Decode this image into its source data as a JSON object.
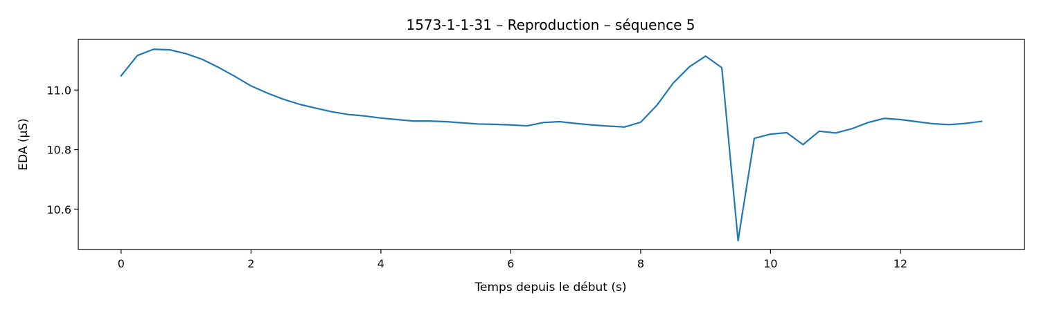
{
  "chart_data": {
    "type": "line",
    "title": "1573-1-1-31 – Reproduction – séquence 5",
    "xlabel": "Temps depuis le début (s)",
    "ylabel": "EDA (µS)",
    "xlim": [
      -0.66,
      13.91
    ],
    "ylim": [
      10.465,
      11.17
    ],
    "x_ticks": [
      0,
      2,
      4,
      6,
      8,
      10,
      12
    ],
    "y_ticks": [
      10.6,
      10.8,
      11.0
    ],
    "x_tick_labels": [
      "0",
      "2",
      "4",
      "6",
      "8",
      "10",
      "12"
    ],
    "y_tick_labels": [
      "10.6",
      "10.8",
      "11.0"
    ],
    "grid": false,
    "line_color": "#1f77b4",
    "series": [
      {
        "x": [
          0,
          0.25,
          0.5,
          0.75,
          1.0,
          1.25,
          1.5,
          1.75,
          2.0,
          2.25,
          2.5,
          2.75,
          3.0,
          3.25,
          3.5,
          3.75,
          4.0,
          4.25,
          4.5,
          4.75,
          5.0,
          5.25,
          5.5,
          5.75,
          6.0,
          6.25,
          6.5,
          6.75,
          7.0,
          7.25,
          7.5,
          7.75,
          8.0,
          8.25,
          8.5,
          8.75,
          9.0,
          9.25,
          9.5,
          9.75,
          10.0,
          10.25,
          10.5,
          10.75,
          11.0,
          11.25,
          11.5,
          11.75,
          12.0,
          12.25,
          12.5,
          12.75,
          13.0,
          13.25
        ],
        "y": [
          11.048,
          11.116,
          11.137,
          11.135,
          11.122,
          11.103,
          11.076,
          11.046,
          11.014,
          10.99,
          10.969,
          10.952,
          10.939,
          10.927,
          10.918,
          10.913,
          10.906,
          10.901,
          10.896,
          10.896,
          10.894,
          10.89,
          10.886,
          10.885,
          10.883,
          10.88,
          10.891,
          10.894,
          10.888,
          10.883,
          10.879,
          10.876,
          10.892,
          10.949,
          11.023,
          11.078,
          11.114,
          11.075,
          10.495,
          10.838,
          10.852,
          10.857,
          10.817,
          10.862,
          10.856,
          10.87,
          10.891,
          10.905,
          10.901,
          10.894,
          10.887,
          10.884,
          10.888,
          10.895
        ]
      }
    ]
  }
}
